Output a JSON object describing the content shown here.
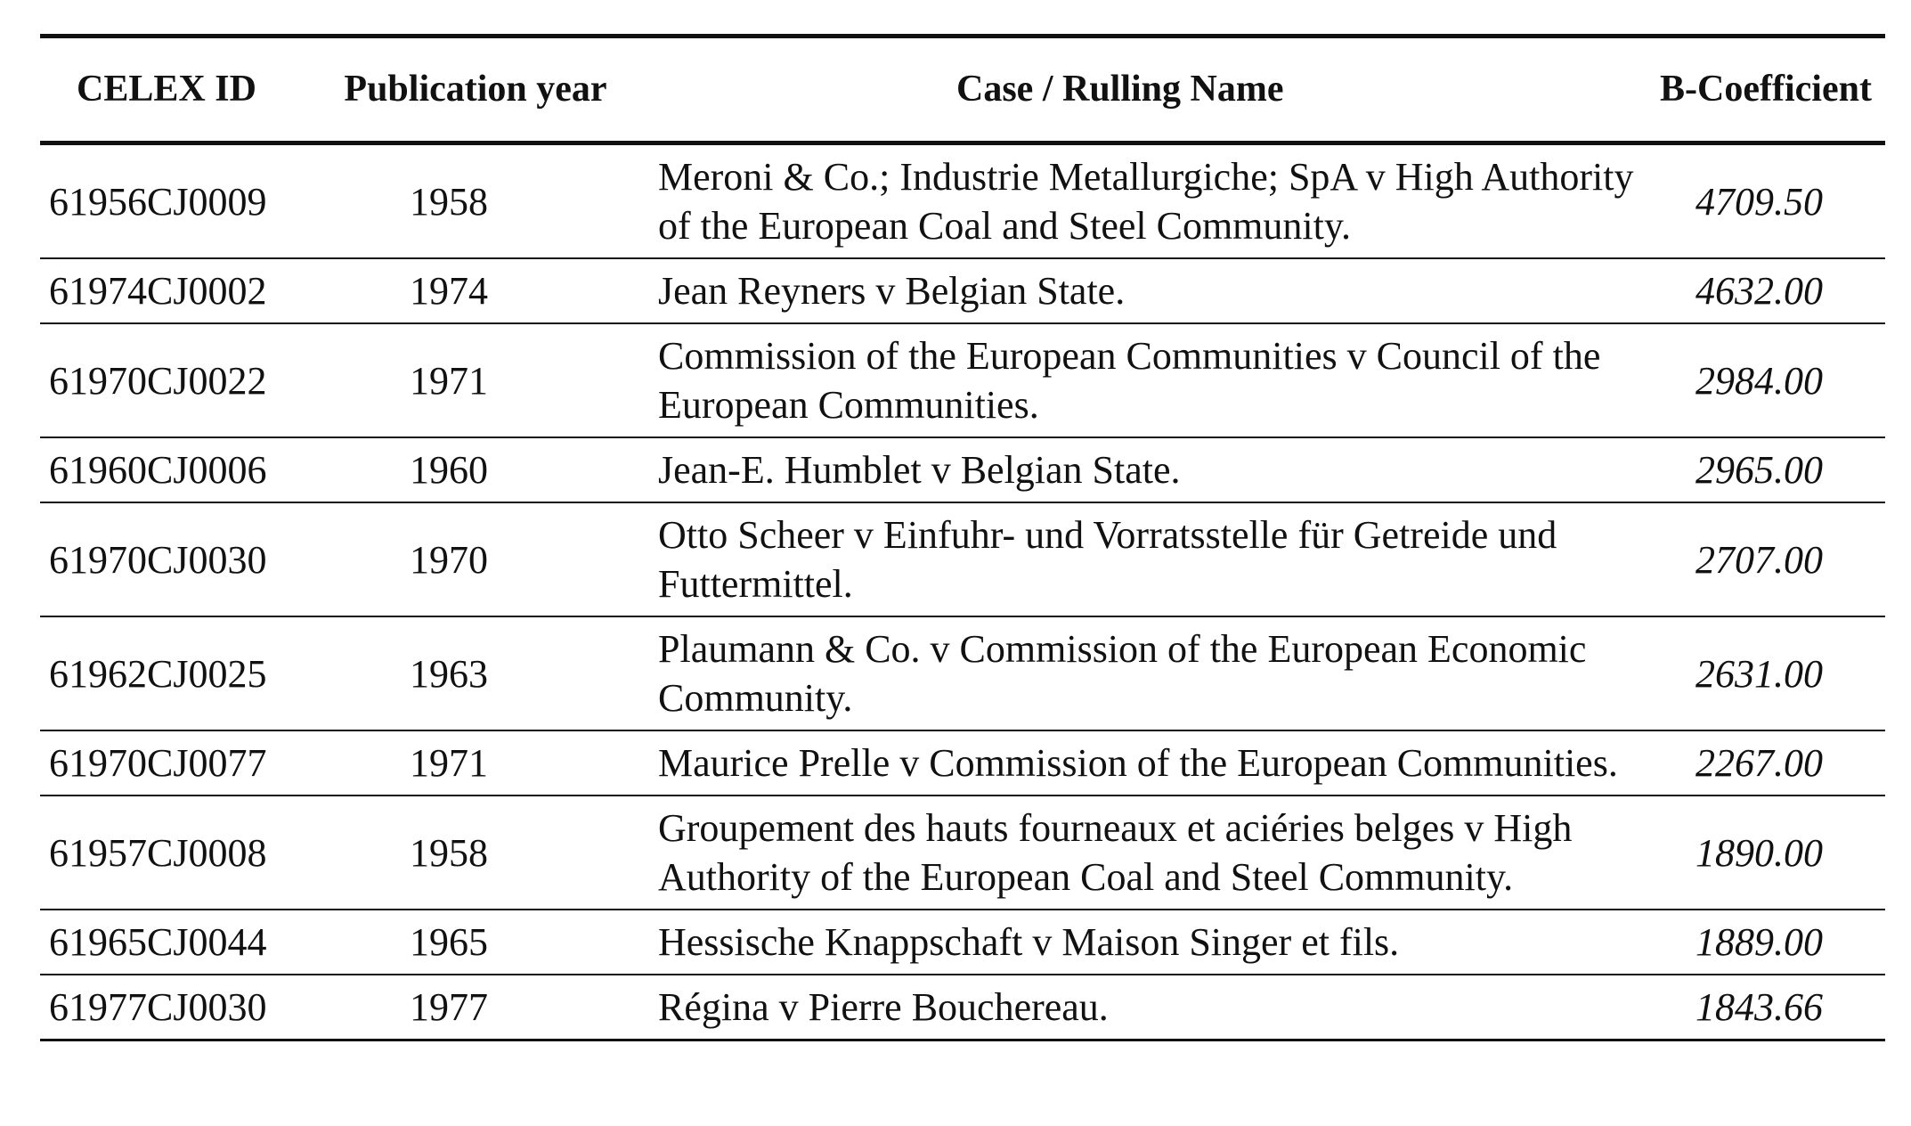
{
  "table": {
    "headers": {
      "id": "CELEX ID",
      "year": "Publication year",
      "name": "Case / Rulling Name",
      "coef": "B-Coefficient"
    },
    "rows": [
      {
        "id": "61956CJ0009",
        "year": "1958",
        "name": "Meroni & Co.; Industrie Metallurgiche; SpA v High Authority of the European Coal and Steel Community.",
        "coef": "4709.50"
      },
      {
        "id": "61974CJ0002",
        "year": "1974",
        "name": "Jean Reyners v Belgian State.",
        "coef": "4632.00"
      },
      {
        "id": "61970CJ0022",
        "year": "1971",
        "name": "Commission of the European Communities v Council of the European Communities.",
        "coef": "2984.00"
      },
      {
        "id": "61960CJ0006",
        "year": "1960",
        "name": "Jean-E. Humblet v Belgian State.",
        "coef": "2965.00"
      },
      {
        "id": "61970CJ0030",
        "year": "1970",
        "name": "Otto Scheer v Einfuhr- und Vorratsstelle für Getreide und Futtermittel.",
        "coef": "2707.00"
      },
      {
        "id": "61962CJ0025",
        "year": "1963",
        "name": "Plaumann & Co. v Commission of the European Economic Community.",
        "coef": "2631.00"
      },
      {
        "id": "61970CJ0077",
        "year": "1971",
        "name": "Maurice Prelle v Commission of the European Communities.",
        "coef": "2267.00"
      },
      {
        "id": "61957CJ0008",
        "year": "1958",
        "name": "Groupement des hauts fourneaux et aciéries belges v High Authority of the European Coal and Steel Community.",
        "coef": "1890.00"
      },
      {
        "id": "61965CJ0044",
        "year": "1965",
        "name": "Hessische Knappschaft v Maison Singer et fils.",
        "coef": "1889.00"
      },
      {
        "id": "61977CJ0030",
        "year": "1977",
        "name": "Régina v Pierre Bouchereau.",
        "coef": "1843.66"
      }
    ]
  }
}
